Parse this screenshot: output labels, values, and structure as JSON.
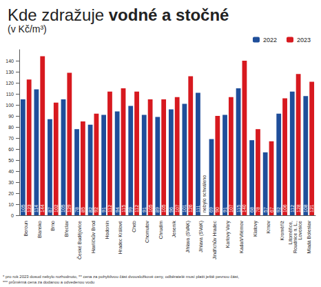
{
  "chart_data": {
    "type": "bar",
    "title": "Kde zdražuje vodné a stočné",
    "subtitle": "(v Kč/m³)",
    "categories": [
      "Beroun",
      "Blansko",
      "Brno",
      "Břeclav",
      "České Budějovice",
      "Havlíčkův Brod",
      "Hodonín",
      "Hradec Králové",
      "Cheb",
      "Chomutov",
      "Chrudim",
      "Jeseník",
      "Jihlava (SVAK)",
      "Jihlava (SVaK)",
      "Jindřichův Hradec",
      "Karlovy Vary",
      "Kadaň/Vilémov",
      "Klatovy",
      "Krnov",
      "Kroměříž",
      "Litoměřice, Roudnice n. L., Lovosice",
      "Mladá Boleslav"
    ],
    "series": [
      {
        "name": "2022",
        "color": "#1f4e9a",
        "values": [
          105,
          114,
          87,
          105,
          78,
          82,
          91,
          94,
          99,
          91,
          89,
          96,
          101,
          111,
          69,
          91,
          115,
          68,
          57,
          92,
          112,
          108
        ]
      },
      {
        "name": "2023",
        "color": "#d7191f",
        "values": [
          123,
          144,
          102,
          129,
          85,
          92,
          112,
          115,
          112,
          105,
          105,
          107,
          126,
          null,
          90,
          107,
          140,
          78,
          67,
          106,
          128,
          121
        ]
      }
    ],
    "annotations": [
      {
        "category": "Jihlava (SVaK)",
        "series": "2023",
        "text": "nebylo schváleno"
      }
    ],
    "notes": [
      "* pro rok 2023 dosud nebylo rozhodnuto, ** cena za pohyblivou část dvousložkové ceny, odběratelé musí platit ještě pevnou část,",
      "*** průměrná cena za dodanou a odvedenou vodu"
    ],
    "ylim": [
      0,
      150
    ],
    "yticks": [
      0,
      10,
      20,
      30,
      40,
      50,
      60,
      70,
      80,
      90,
      100,
      110,
      120,
      130,
      140
    ],
    "grid": false,
    "legend": "top-right",
    "data_labels": true
  }
}
